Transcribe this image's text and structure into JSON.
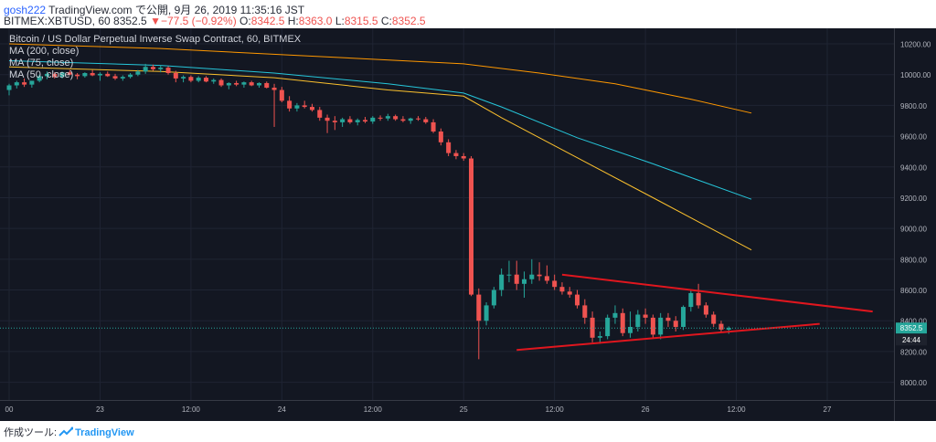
{
  "header": {
    "author": "gosh222",
    "site": "TradingView.com",
    "publish_text": "で公開, 9月 26, 2019 11:35:16 JST",
    "symbol_line": "BITMEX:XBTUSD, 60 8352.5",
    "change": "−77.5 (−0.92%)",
    "ohlc": {
      "o": "8342.5",
      "h": "8363.0",
      "l": "8315.5",
      "c": "8352.5"
    }
  },
  "overlay": {
    "title": "Bitcoin / US Dollar Perpetual Inverse Swap Contract, 60, BITMEX",
    "ma_labels": [
      "MA (200, close)",
      "MA (75, close)",
      "MA (50, close)"
    ]
  },
  "footer": {
    "prefix": "作成ツール:",
    "brand": "TradingView"
  },
  "colors": {
    "background": "#131722",
    "up": "#26a69a",
    "down": "#ef5350",
    "ma200": "#ff9800",
    "ma75": "#26c6da",
    "ma50": "#fbc02d",
    "trendline": "#e0161e"
  },
  "chart_data": {
    "type": "candlestick",
    "symbol": "BITMEX:XBTUSD",
    "interval": "60",
    "ylim": [
      7870,
      10310
    ],
    "y_ticks": [
      8000,
      8200,
      8400,
      8600,
      8800,
      9000,
      9200,
      9400,
      9600,
      9800,
      10000,
      10200
    ],
    "x_ticks": [
      {
        "i": 0,
        "label": "00"
      },
      {
        "i": 24,
        "label": "23"
      },
      {
        "i": 48,
        "label": "12:00"
      },
      {
        "i": 72,
        "label": "24"
      },
      {
        "i": 96,
        "label": "12:00"
      },
      {
        "i": 120,
        "label": "25"
      },
      {
        "i": 144,
        "label": "12:00"
      },
      {
        "i": 168,
        "label": "26"
      },
      {
        "i": 192,
        "label": "12:00"
      },
      {
        "i": 216,
        "label": "27"
      }
    ],
    "last_price": "8352.5",
    "countdown": "24:44",
    "candles": [
      [
        0,
        9900,
        9940,
        9865,
        9930
      ],
      [
        2,
        9930,
        9960,
        9910,
        9950
      ],
      [
        4,
        9950,
        9975,
        9920,
        9935
      ],
      [
        6,
        9935,
        9960,
        9915,
        9960
      ],
      [
        8,
        9960,
        10000,
        9950,
        9990
      ],
      [
        10,
        9990,
        10020,
        9970,
        10005
      ],
      [
        12,
        10005,
        10015,
        9975,
        9985
      ],
      [
        14,
        9985,
        10020,
        9975,
        10015
      ],
      [
        16,
        10015,
        10030,
        9995,
        10000
      ],
      [
        18,
        10000,
        10010,
        9970,
        9990
      ],
      [
        20,
        9990,
        10015,
        9980,
        10010
      ],
      [
        22,
        10010,
        10030,
        9990,
        9995
      ],
      [
        24,
        9995,
        10015,
        9960,
        10005
      ],
      [
        26,
        10005,
        10020,
        9985,
        9990
      ],
      [
        28,
        9990,
        10005,
        9965,
        9975
      ],
      [
        30,
        9975,
        9995,
        9960,
        9985
      ],
      [
        32,
        9985,
        10010,
        9975,
        10000
      ],
      [
        34,
        10000,
        10030,
        9990,
        10020
      ],
      [
        36,
        10020,
        10070,
        10005,
        10050
      ],
      [
        38,
        10050,
        10065,
        10025,
        10035
      ],
      [
        40,
        10035,
        10060,
        10015,
        10045
      ],
      [
        42,
        10045,
        10055,
        10000,
        10010
      ],
      [
        44,
        10010,
        10025,
        9950,
        9975
      ],
      [
        46,
        9975,
        9995,
        9950,
        9985
      ],
      [
        48,
        9985,
        9995,
        9950,
        9960
      ],
      [
        50,
        9960,
        9990,
        9950,
        9980
      ],
      [
        52,
        9980,
        9990,
        9950,
        9955
      ],
      [
        54,
        9955,
        9975,
        9940,
        9965
      ],
      [
        56,
        9965,
        9975,
        9920,
        9930
      ],
      [
        58,
        9930,
        9950,
        9905,
        9945
      ],
      [
        60,
        9945,
        9960,
        9925,
        9935
      ],
      [
        62,
        9935,
        9955,
        9915,
        9950
      ],
      [
        64,
        9950,
        9960,
        9925,
        9930
      ],
      [
        66,
        9930,
        9950,
        9915,
        9945
      ],
      [
        68,
        9945,
        9955,
        9910,
        9915
      ],
      [
        70,
        9915,
        9940,
        9660,
        9900
      ],
      [
        72,
        9900,
        9920,
        9820,
        9830
      ],
      [
        74,
        9830,
        9860,
        9760,
        9780
      ],
      [
        76,
        9780,
        9815,
        9760,
        9800
      ],
      [
        78,
        9800,
        9830,
        9780,
        9790
      ],
      [
        80,
        9790,
        9810,
        9760,
        9770
      ],
      [
        82,
        9770,
        9790,
        9700,
        9720
      ],
      [
        84,
        9720,
        9740,
        9620,
        9700
      ],
      [
        86,
        9700,
        9730,
        9640,
        9690
      ],
      [
        88,
        9690,
        9720,
        9660,
        9710
      ],
      [
        90,
        9710,
        9730,
        9680,
        9690
      ],
      [
        92,
        9690,
        9715,
        9670,
        9705
      ],
      [
        94,
        9705,
        9725,
        9685,
        9695
      ],
      [
        96,
        9695,
        9730,
        9680,
        9720
      ],
      [
        98,
        9720,
        9735,
        9700,
        9715
      ],
      [
        100,
        9715,
        9745,
        9700,
        9730
      ],
      [
        102,
        9730,
        9740,
        9700,
        9710
      ],
      [
        104,
        9710,
        9730,
        9690,
        9700
      ],
      [
        106,
        9700,
        9720,
        9680,
        9715
      ],
      [
        108,
        9715,
        9730,
        9700,
        9710
      ],
      [
        110,
        9710,
        9725,
        9680,
        9690
      ],
      [
        112,
        9690,
        9710,
        9620,
        9630
      ],
      [
        114,
        9630,
        9650,
        9540,
        9560
      ],
      [
        116,
        9560,
        9580,
        9470,
        9490
      ],
      [
        118,
        9490,
        9510,
        9450,
        9470
      ],
      [
        120,
        9470,
        9490,
        9440,
        9455
      ],
      [
        122,
        9455,
        9470,
        8560,
        8570
      ],
      [
        124,
        8570,
        8610,
        8150,
        8400
      ],
      [
        126,
        8400,
        8520,
        8370,
        8500
      ],
      [
        128,
        8500,
        8620,
        8480,
        8600
      ],
      [
        130,
        8600,
        8740,
        8560,
        8700
      ],
      [
        132,
        8700,
        8790,
        8650,
        8700
      ],
      [
        134,
        8700,
        8790,
        8600,
        8640
      ],
      [
        136,
        8640,
        8720,
        8550,
        8670
      ],
      [
        138,
        8670,
        8800,
        8640,
        8700
      ],
      [
        140,
        8700,
        8780,
        8660,
        8690
      ],
      [
        142,
        8690,
        8760,
        8640,
        8660
      ],
      [
        144,
        8660,
        8700,
        8600,
        8620
      ],
      [
        146,
        8620,
        8650,
        8570,
        8590
      ],
      [
        148,
        8590,
        8620,
        8550,
        8570
      ],
      [
        150,
        8570,
        8600,
        8480,
        8500
      ],
      [
        152,
        8500,
        8540,
        8380,
        8420
      ],
      [
        154,
        8420,
        8460,
        8260,
        8290
      ],
      [
        156,
        8290,
        8330,
        8250,
        8300
      ],
      [
        158,
        8300,
        8440,
        8280,
        8420
      ],
      [
        160,
        8420,
        8500,
        8380,
        8450
      ],
      [
        162,
        8450,
        8480,
        8300,
        8320
      ],
      [
        164,
        8320,
        8460,
        8290,
        8360
      ],
      [
        166,
        8360,
        8470,
        8330,
        8440
      ],
      [
        168,
        8440,
        8480,
        8380,
        8420
      ],
      [
        170,
        8420,
        8440,
        8290,
        8310
      ],
      [
        172,
        8310,
        8450,
        8280,
        8420
      ],
      [
        174,
        8420,
        8450,
        8360,
        8400
      ],
      [
        176,
        8400,
        8430,
        8330,
        8360
      ],
      [
        178,
        8360,
        8500,
        8340,
        8490
      ],
      [
        180,
        8490,
        8600,
        8460,
        8580
      ],
      [
        182,
        8580,
        8640,
        8480,
        8500
      ],
      [
        184,
        8500,
        8520,
        8420,
        8440
      ],
      [
        186,
        8440,
        8460,
        8360,
        8380
      ],
      [
        188,
        8380,
        8400,
        8330,
        8342.5
      ],
      [
        190,
        8342.5,
        8363,
        8315.5,
        8352.5
      ]
    ],
    "ma_series": [
      {
        "name": "MA (200, close)",
        "color": "#ff9800",
        "points": [
          [
            0,
            10200
          ],
          [
            40,
            10170
          ],
          [
            80,
            10120
          ],
          [
            120,
            10070
          ],
          [
            140,
            10010
          ],
          [
            160,
            9940
          ],
          [
            180,
            9840
          ],
          [
            196,
            9750
          ]
        ]
      },
      {
        "name": "MA (75, close)",
        "color": "#26c6da",
        "points": [
          [
            0,
            10090
          ],
          [
            40,
            10060
          ],
          [
            70,
            10010
          ],
          [
            100,
            9940
          ],
          [
            120,
            9880
          ],
          [
            130,
            9790
          ],
          [
            150,
            9590
          ],
          [
            170,
            9420
          ],
          [
            196,
            9190
          ]
        ]
      },
      {
        "name": "MA (50, close)",
        "color": "#fbc02d",
        "points": [
          [
            0,
            10050
          ],
          [
            40,
            10020
          ],
          [
            70,
            9980
          ],
          [
            100,
            9900
          ],
          [
            120,
            9860
          ],
          [
            130,
            9720
          ],
          [
            150,
            9460
          ],
          [
            170,
            9200
          ],
          [
            196,
            8860
          ]
        ]
      }
    ],
    "trendlines": [
      {
        "from": [
          146,
          8700
        ],
        "to": [
          228,
          8460
        ]
      },
      {
        "from": [
          134,
          8210
        ],
        "to": [
          214,
          8380
        ]
      }
    ]
  }
}
